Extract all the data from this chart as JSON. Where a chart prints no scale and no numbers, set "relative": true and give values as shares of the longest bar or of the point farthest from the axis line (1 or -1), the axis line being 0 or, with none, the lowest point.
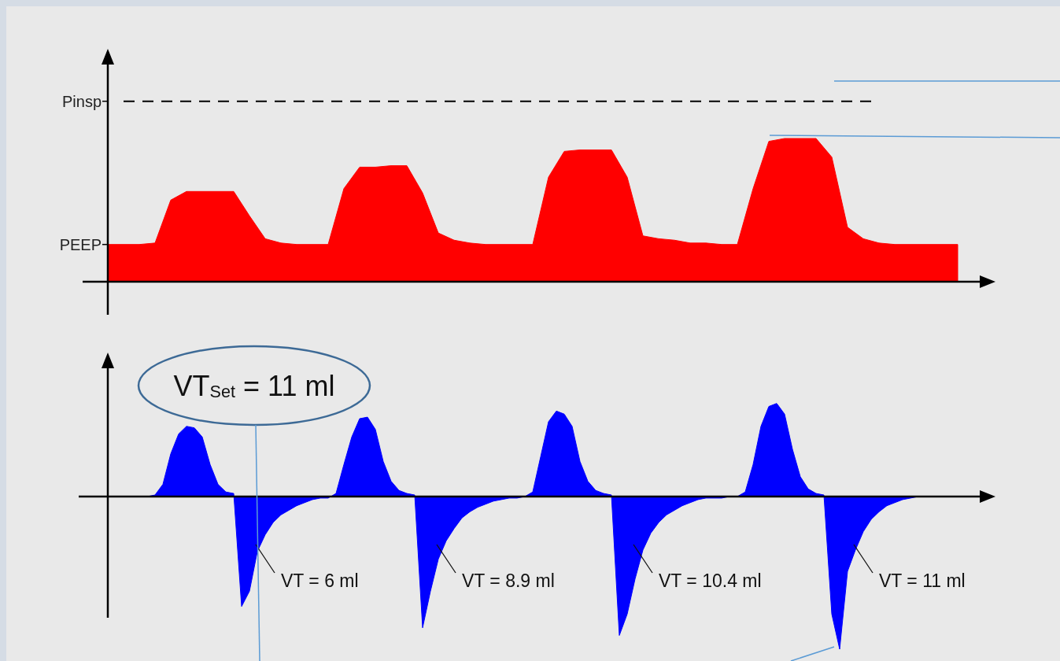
{
  "chart_data": [
    {
      "type": "area",
      "relative": true,
      "categories": [
        null,
        null,
        null,
        null,
        null,
        null,
        null,
        null,
        null,
        null,
        null,
        null,
        null,
        null,
        null,
        null,
        null,
        null,
        null,
        null,
        null,
        null,
        null,
        null,
        null,
        null,
        null,
        null,
        null,
        null,
        null,
        null,
        null,
        null,
        null,
        null,
        null,
        null,
        null,
        null,
        null,
        null,
        null,
        null,
        null,
        null,
        null,
        null,
        null,
        null,
        null,
        null,
        null,
        null,
        null
      ],
      "series": [
        {
          "color": "#ff0000",
          "values": [
            0.26,
            0.26,
            0.26,
            0.27,
            0.57,
            0.63,
            0.63,
            0.63,
            0.63,
            0.46,
            0.3,
            0.27,
            0.26,
            0.26,
            0.26,
            0.65,
            0.8,
            0.8,
            0.81,
            0.81,
            0.62,
            0.34,
            0.29,
            0.27,
            0.26,
            0.26,
            0.26,
            0.26,
            0.73,
            0.91,
            0.92,
            0.92,
            0.92,
            0.73,
            0.32,
            0.3,
            0.29,
            0.27,
            0.27,
            0.26,
            0.26,
            0.65,
            0.98,
            1,
            1,
            1,
            0.87,
            0.38,
            0.3,
            0.27,
            0.26,
            0.26,
            0.26,
            0.26,
            0.26
          ]
        }
      ],
      "ref_lines": [
        {
          "axis": "y",
          "value": 1.26,
          "label": "Pinsp",
          "line_style": "dashed",
          "color": "#000000"
        },
        {
          "axis": "y",
          "value": 0.26,
          "label": "PEEP"
        }
      ]
    },
    {
      "type": "area",
      "relative": true,
      "categories": [
        null,
        null,
        null,
        null,
        null,
        null,
        null,
        null,
        null,
        null,
        null,
        null,
        null,
        null,
        null,
        null,
        null,
        null,
        null,
        null,
        null,
        null,
        null,
        null,
        null,
        null,
        null,
        null,
        null,
        null,
        null,
        null,
        null,
        null,
        null,
        null,
        null,
        null,
        null,
        null,
        null,
        null,
        null,
        null,
        null,
        null,
        null,
        null,
        null,
        null,
        null,
        null,
        null,
        null,
        null,
        null,
        null,
        null,
        null,
        null,
        null,
        null,
        null,
        null,
        null,
        null,
        null,
        null,
        null,
        null,
        null,
        null,
        null,
        null,
        null,
        null,
        null,
        null,
        null,
        null,
        null,
        null,
        null,
        null,
        null,
        null,
        null,
        null,
        null,
        null,
        null,
        null,
        null,
        null,
        null,
        null,
        null,
        null,
        null,
        null,
        null,
        null,
        null,
        null
      ],
      "series": [
        {
          "color": "#0000ff",
          "values": [
            0,
            0,
            0,
            0,
            0,
            0,
            0.01,
            0.08,
            0.28,
            0.41,
            0.46,
            0.45,
            0.39,
            0.21,
            0.08,
            0.03,
            0.02,
            -0.72,
            -0.62,
            -0.36,
            -0.25,
            -0.17,
            -0.12,
            -0.09,
            -0.06,
            -0.04,
            -0.02,
            -0.01,
            -0.01,
            0.02,
            0.21,
            0.39,
            0.51,
            0.52,
            0.44,
            0.23,
            0.1,
            0.04,
            0.02,
            0.01,
            -0.86,
            -0.62,
            -0.41,
            -0.29,
            -0.21,
            -0.14,
            -0.1,
            -0.07,
            -0.05,
            -0.03,
            -0.02,
            -0.01,
            -0.01,
            0,
            0.03,
            0.26,
            0.49,
            0.56,
            0.54,
            0.46,
            0.23,
            0.1,
            0.04,
            0.02,
            0.01,
            -0.91,
            -0.77,
            -0.54,
            -0.35,
            -0.24,
            -0.17,
            -0.12,
            -0.09,
            -0.06,
            -0.04,
            -0.02,
            -0.01,
            -0.01,
            -0.01,
            0,
            0,
            0.03,
            0.21,
            0.46,
            0.59,
            0.61,
            0.54,
            0.31,
            0.13,
            0.05,
            0.02,
            0.01,
            -0.77,
            -1,
            -0.49,
            -0.35,
            -0.23,
            -0.15,
            -0.1,
            -0.06,
            -0.04,
            -0.02,
            -0.01,
            0
          ]
        }
      ],
      "annotations": [
        "VT$_{Set}$ = 11 ml",
        "VT = 6 ml",
        "VT = 8.9 ml",
        "VT = 10.4 ml",
        "VT = 11 ml"
      ]
    }
  ]
}
